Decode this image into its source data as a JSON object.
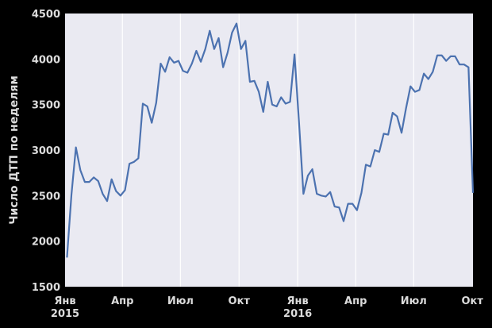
{
  "chart_data": {
    "type": "line",
    "ylabel": "Число ДТП по неделям",
    "ylim": [
      1500,
      4500
    ],
    "y_ticks": [
      "1500",
      "2000",
      "2500",
      "3000",
      "3500",
      "4000",
      "4500"
    ],
    "x_ticks": [
      {
        "month": "Янв",
        "year": "2015"
      },
      {
        "month": "Апр",
        "year": ""
      },
      {
        "month": "Июл",
        "year": ""
      },
      {
        "month": "Окт",
        "year": ""
      },
      {
        "month": "Янв",
        "year": "2016"
      },
      {
        "month": "Апр",
        "year": ""
      },
      {
        "month": "Июл",
        "year": ""
      },
      {
        "month": "Окт",
        "year": ""
      }
    ],
    "grid": true,
    "colors": {
      "line": "#4c72b0",
      "background": "#eaeaf2",
      "grid": "#ffffff"
    },
    "series": [
      {
        "start_date": "2015-01-04",
        "values": [
          1820,
          2510,
          3030,
          2780,
          2650,
          2650,
          2700,
          2660,
          2520,
          2440,
          2680,
          2550,
          2500,
          2560,
          2850,
          2870,
          2910,
          3510,
          3480,
          3300,
          3520,
          3950,
          3860,
          4020,
          3960,
          3980,
          3870,
          3850,
          3950,
          4090,
          3970,
          4110,
          4310,
          4110,
          4230,
          3910,
          4070,
          4290,
          4390,
          4110,
          4200,
          3750,
          3760,
          3640,
          3420,
          3750,
          3500,
          3480,
          3580,
          3510,
          3530,
          4050,
          3310,
          2520,
          2720,
          2790,
          2520,
          2500,
          2490,
          2540,
          2380,
          2370,
          2220,
          2410,
          2410,
          2340,
          2530,
          2840,
          2820,
          3000,
          2980,
          3180,
          3170,
          3410,
          3370,
          3190,
          3460,
          3700,
          3640,
          3660,
          3840,
          3780,
          3860,
          4040,
          4040,
          3980,
          4030,
          4030,
          3940,
          3940,
          3910,
          2530
        ]
      }
    ]
  }
}
